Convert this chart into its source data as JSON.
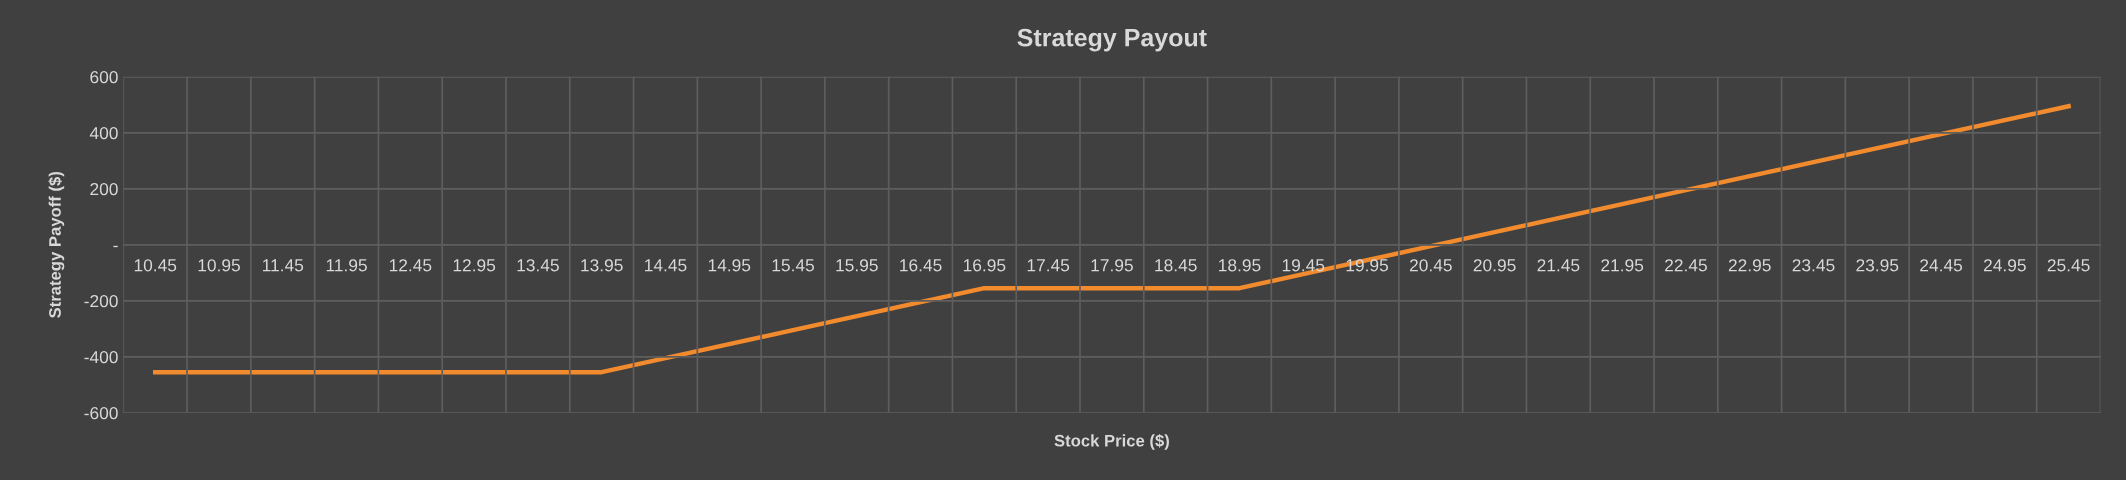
{
  "chart_data": {
    "type": "line",
    "title": "Strategy Payout",
    "xlabel": "Stock Price ($)",
    "ylabel": "Strategy Payoff ($)",
    "categories": [
      "10.45",
      "10.95",
      "11.45",
      "11.95",
      "12.45",
      "12.95",
      "13.45",
      "13.95",
      "14.45",
      "14.95",
      "15.45",
      "15.95",
      "16.45",
      "16.95",
      "17.45",
      "17.95",
      "18.45",
      "18.95",
      "19.45",
      "19.95",
      "20.45",
      "20.95",
      "21.45",
      "21.95",
      "22.45",
      "22.95",
      "23.45",
      "23.95",
      "24.45",
      "24.95",
      "25.45"
    ],
    "series": [
      {
        "color": "#f28a2e",
        "values": [
          -455,
          -455,
          -455,
          -455,
          -455,
          -455,
          -455,
          -455,
          -405,
          -355,
          -305,
          -255,
          -205,
          -155,
          -155,
          -155,
          -155,
          -155,
          -105,
          -55,
          -5,
          45,
          95,
          145,
          195,
          245,
          295,
          345,
          395,
          445,
          495
        ]
      }
    ],
    "ylim": [
      -600,
      600
    ],
    "yticks": [
      -600,
      -400,
      -200,
      {
        "value": 0,
        "label": "-"
      },
      200,
      400,
      600
    ],
    "grid": true,
    "marker": "none",
    "line_style": "solid"
  }
}
